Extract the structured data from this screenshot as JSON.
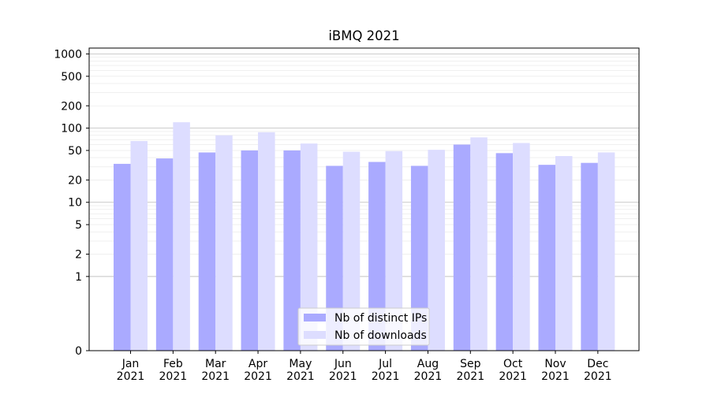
{
  "chart_data": {
    "type": "bar",
    "title": "iBMQ 2021",
    "xlabel": "",
    "ylabel": "",
    "y_scale": "symlog",
    "ylim": [
      0,
      1200
    ],
    "y_ticks": [
      0,
      1,
      2,
      5,
      10,
      20,
      50,
      100,
      200,
      500,
      1000
    ],
    "y_tick_labels": [
      "0",
      "1",
      "2",
      "5",
      "10",
      "20",
      "50",
      "100",
      "200",
      "500",
      "1000"
    ],
    "grid": true,
    "legend_position": "bottom-center",
    "categories": [
      [
        "Jan",
        "2021"
      ],
      [
        "Feb",
        "2021"
      ],
      [
        "Mar",
        "2021"
      ],
      [
        "Apr",
        "2021"
      ],
      [
        "May",
        "2021"
      ],
      [
        "Jun",
        "2021"
      ],
      [
        "Jul",
        "2021"
      ],
      [
        "Aug",
        "2021"
      ],
      [
        "Sep",
        "2021"
      ],
      [
        "Oct",
        "2021"
      ],
      [
        "Nov",
        "2021"
      ],
      [
        "Dec",
        "2021"
      ]
    ],
    "series": [
      {
        "name": "Nb of distinct IPs",
        "color": "#aaaaff",
        "values": [
          33,
          39,
          47,
          50,
          50,
          31,
          35,
          31,
          60,
          46,
          32,
          34
        ]
      },
      {
        "name": "Nb of downloads",
        "color": "#ddddff",
        "values": [
          67,
          120,
          80,
          88,
          62,
          48,
          49,
          51,
          75,
          63,
          42,
          47
        ]
      }
    ]
  }
}
